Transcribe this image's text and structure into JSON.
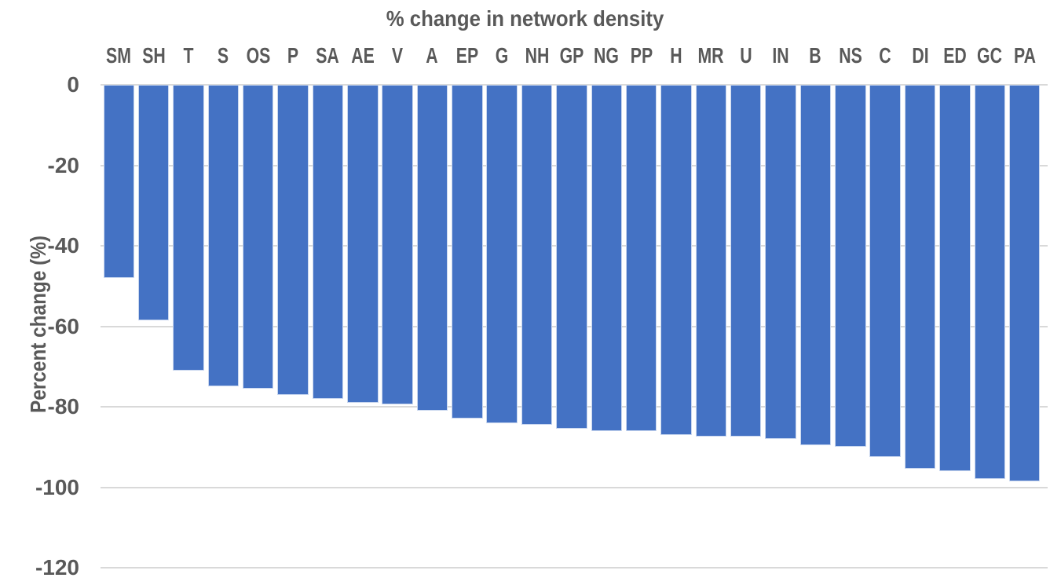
{
  "chart_data": {
    "type": "bar",
    "title": "% change in network density",
    "ylabel": "Percent change (%)",
    "xlabel": "",
    "categories": [
      "SM",
      "SH",
      "T",
      "S",
      "OS",
      "P",
      "SA",
      "AE",
      "V",
      "A",
      "EP",
      "G",
      "NH",
      "GP",
      "NG",
      "PP",
      "H",
      "MR",
      "U",
      "IN",
      "B",
      "NS",
      "C",
      "DI",
      "ED",
      "GC",
      "PA"
    ],
    "values": [
      -48,
      -58.5,
      -71,
      -75,
      -75.5,
      -77,
      -78,
      -79,
      -79.5,
      -81,
      -83,
      -84,
      -84.5,
      -85.5,
      -86,
      -86,
      -87,
      -87.5,
      -87.5,
      -88,
      -89.5,
      -90,
      -92.5,
      -95.5,
      -96,
      -98,
      -98.5
    ],
    "ylim": [
      -120,
      0
    ],
    "yticks": [
      0,
      -20,
      -40,
      -60,
      -80,
      -100,
      -120
    ],
    "grid": true,
    "legend": false,
    "bar_color": "#4472C4",
    "grid_color": "#D9D9D9",
    "text_color": "#595959"
  }
}
